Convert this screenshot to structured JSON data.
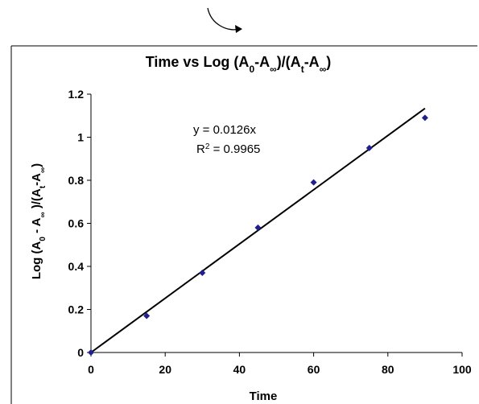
{
  "chart_data": {
    "type": "scatter",
    "title": {
      "main": "Time vs Log (A",
      "sub1": "0",
      "mid1": "-A",
      "sub2": "∞",
      "mid2": ")/(A",
      "sub3": "t",
      "mid3": "-A",
      "sub4": "∞",
      "end": ")"
    },
    "xlabel": "Time",
    "ylabel": {
      "p1": "Log (A",
      "s1": "0",
      "p2": " - A",
      "s2": "∞",
      "p3": " )/(A",
      "s3": "t",
      "p4": "-A",
      "s4": "∞",
      "p5": ")"
    },
    "xlim": [
      0,
      100
    ],
    "ylim": [
      0,
      1.2
    ],
    "xticks": [
      "0",
      "20",
      "40",
      "60",
      "80",
      "100"
    ],
    "yticks": [
      "0",
      "0.2",
      "0.4",
      "0.6",
      "0.8",
      "1",
      "1.2"
    ],
    "xtick_values": [
      0,
      20,
      40,
      60,
      80,
      100
    ],
    "ytick_values": [
      0,
      0.2,
      0.4,
      0.6,
      0.8,
      1.0,
      1.2
    ],
    "series": [
      {
        "x": [
          0,
          15,
          30,
          45,
          60,
          75,
          90
        ],
        "y": [
          0,
          0.17,
          0.37,
          0.58,
          0.79,
          0.95,
          1.09
        ],
        "color": "#1f1f8f"
      }
    ],
    "trendline": {
      "slope": 0.0126,
      "x_range": [
        0,
        90
      ],
      "equation": "y = 0.0126x",
      "r2_prefix": "R",
      "r2_sup": "2",
      "r2_value": " = 0.9965"
    },
    "grid": false,
    "legend": "none"
  }
}
